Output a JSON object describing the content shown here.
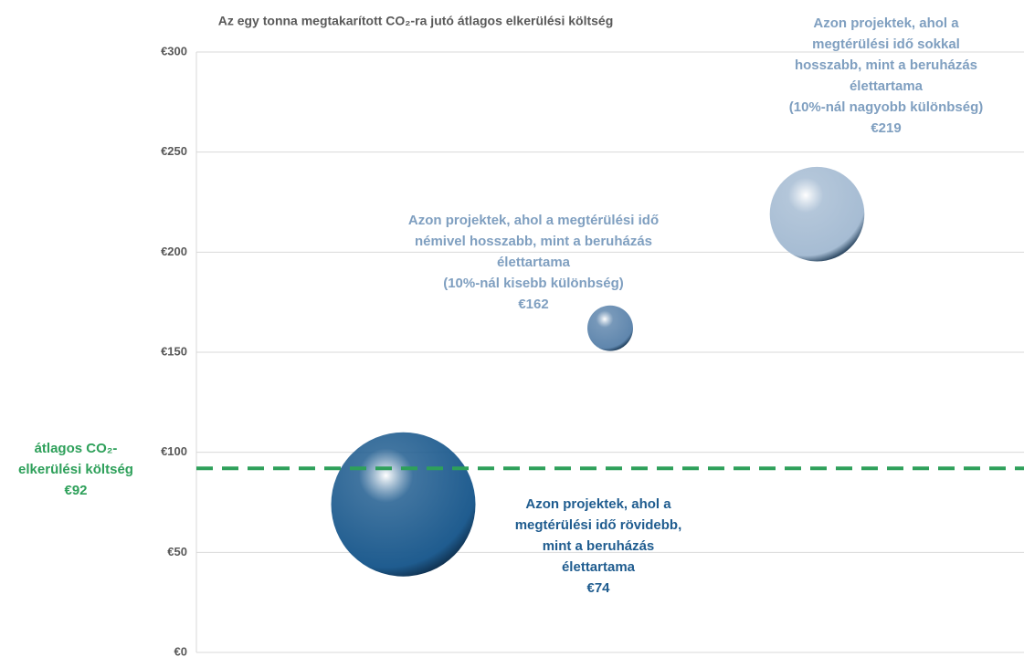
{
  "chart_data": {
    "type": "bubble",
    "title": "Az egy tonna megtakarított CO₂-ra jutó átlagos elkerülési költség",
    "x": [
      1,
      2,
      3
    ],
    "xlim": [
      0,
      4
    ],
    "ylim": [
      0,
      300
    ],
    "yticks": [
      {
        "value": 0,
        "label": "€0"
      },
      {
        "value": 50,
        "label": "€50"
      },
      {
        "value": 100,
        "label": "€100"
      },
      {
        "value": 150,
        "label": "€150"
      },
      {
        "value": 200,
        "label": "€200"
      },
      {
        "value": 250,
        "label": "€250"
      },
      {
        "value": 300,
        "label": "€300"
      }
    ],
    "grid": true,
    "series": [
      {
        "values": [
          74,
          162,
          219
        ],
        "sizes": [
          100,
          10,
          43
        ],
        "value_labels": [
          "€74",
          "€162",
          "€219"
        ],
        "colors": [
          "#1f5c8f",
          "#5f86ad",
          "#a6bcd3"
        ],
        "label_colors": [
          "#1f5c8f",
          "#7f9fc0",
          "#7f9fc0"
        ],
        "annotations": [
          [
            "Azon projektek, ahol a",
            "megtérülési idő rövidebb,",
            "mint a beruházás",
            "élettartama"
          ],
          [
            "Azon projektek, ahol a megtérülési idő",
            "némivel hosszabb, mint a beruházás",
            "élettartama",
            "(10%-nál kisebb különbség)"
          ],
          [
            "Azon projektek, ahol a",
            "megtérülési idő sokkal",
            "hosszabb, mint a beruházás",
            "élettartama",
            "(10%-nál nagyobb különbség)"
          ]
        ]
      }
    ],
    "reference_line": {
      "value": 92,
      "label_lines": [
        "átlagos CO₂-",
        "elkerülési költség"
      ],
      "value_label": "€92",
      "color": "#2ea05a"
    }
  }
}
